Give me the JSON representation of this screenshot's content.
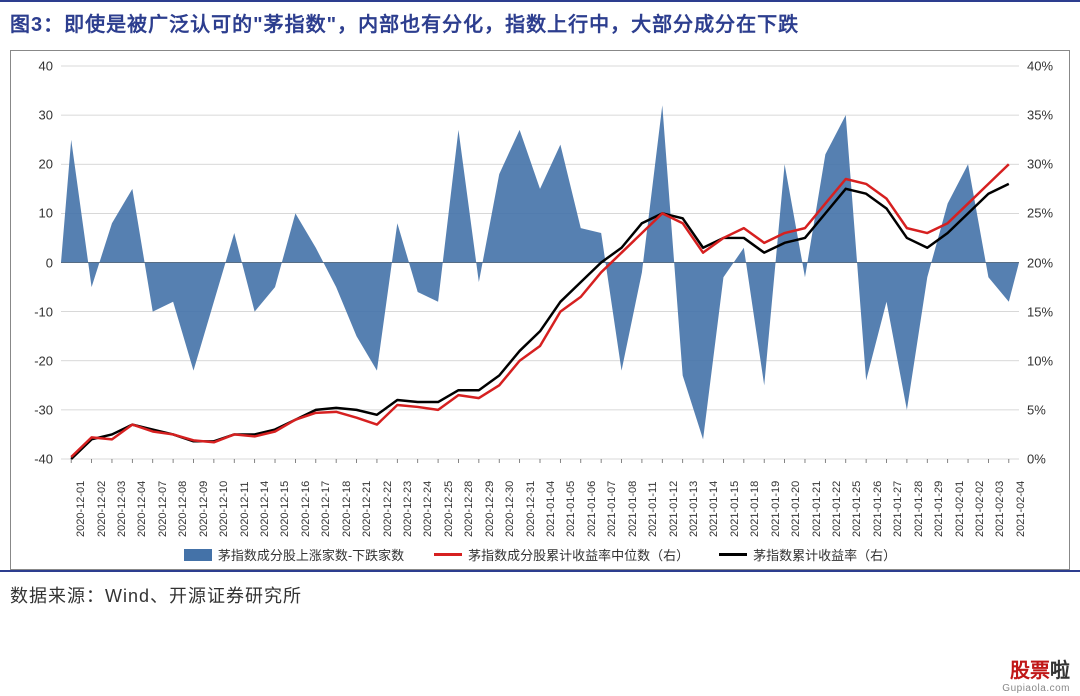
{
  "title": "图3：即使是被广泛认可的\"茅指数\"，内部也有分化，指数上行中，大部分成分在下跌",
  "source": "数据来源：Wind、开源证券研究所",
  "watermark": {
    "main1": "股票",
    "main2": "啦",
    "sub": "Gupiaola.com"
  },
  "chart": {
    "type": "combo-bar-line",
    "background_color": "#ffffff",
    "grid_color": "#cccccc",
    "bar_color": "#4472a8",
    "line1_color": "#d62020",
    "line2_color": "#000000",
    "line_width": 2.5,
    "axis_fontsize": 13,
    "xlabel_fontsize": 11,
    "y_left": {
      "min": -40,
      "max": 40,
      "step": 10,
      "ticks": [
        -40,
        -30,
        -20,
        -10,
        0,
        10,
        20,
        30,
        40
      ]
    },
    "y_right": {
      "min": 0,
      "max": 40,
      "step": 5,
      "ticks_labels": [
        "0%",
        "5%",
        "10%",
        "15%",
        "20%",
        "25%",
        "30%",
        "35%",
        "40%"
      ],
      "ticks_values": [
        0,
        5,
        10,
        15,
        20,
        25,
        30,
        35,
        40
      ]
    },
    "legend": {
      "bar": "茅指数成分股上涨家数-下跌家数",
      "line1": "茅指数成分股累计收益率中位数（右）",
      "line2": "茅指数累计收益率（右）"
    },
    "categories": [
      "2020-12-01",
      "2020-12-02",
      "2020-12-03",
      "2020-12-04",
      "2020-12-07",
      "2020-12-08",
      "2020-12-09",
      "2020-12-10",
      "2020-12-11",
      "2020-12-14",
      "2020-12-15",
      "2020-12-16",
      "2020-12-17",
      "2020-12-18",
      "2020-12-21",
      "2020-12-22",
      "2020-12-23",
      "2020-12-24",
      "2020-12-25",
      "2020-12-28",
      "2020-12-29",
      "2020-12-30",
      "2020-12-31",
      "2021-01-04",
      "2021-01-05",
      "2021-01-06",
      "2021-01-07",
      "2021-01-08",
      "2021-01-11",
      "2021-01-12",
      "2021-01-13",
      "2021-01-14",
      "2021-01-15",
      "2021-01-18",
      "2021-01-19",
      "2021-01-20",
      "2021-01-21",
      "2021-01-22",
      "2021-01-25",
      "2021-01-26",
      "2021-01-27",
      "2021-01-28",
      "2021-01-29",
      "2021-02-01",
      "2021-02-02",
      "2021-02-03",
      "2021-02-04"
    ],
    "bar_values": [
      25,
      -5,
      8,
      15,
      -10,
      -8,
      -22,
      -8,
      6,
      -10,
      -5,
      10,
      3,
      -5,
      -15,
      -22,
      8,
      -6,
      -8,
      27,
      -4,
      18,
      27,
      15,
      24,
      7,
      6,
      -22,
      -2,
      32,
      -23,
      -36,
      -3,
      3,
      -25,
      20,
      -3,
      22,
      30,
      -24,
      -8,
      -30,
      -3,
      12,
      20,
      -3,
      -8
    ],
    "line1_values": [
      0.2,
      2.2,
      2.0,
      3.5,
      2.8,
      2.5,
      1.9,
      1.7,
      2.5,
      2.3,
      2.8,
      4.0,
      4.7,
      4.8,
      4.2,
      3.5,
      5.5,
      5.3,
      5.0,
      6.5,
      6.2,
      7.5,
      10.0,
      11.5,
      15.0,
      16.5,
      19.0,
      21.0,
      23.0,
      25.0,
      24.0,
      21.0,
      22.5,
      23.5,
      22.0,
      23.0,
      23.5,
      26.0,
      28.5,
      28.0,
      26.5,
      23.5,
      23.0,
      24.0,
      26.0,
      28.0,
      30.0
    ],
    "line2_values": [
      0.0,
      2.0,
      2.5,
      3.5,
      3.0,
      2.5,
      1.8,
      1.8,
      2.5,
      2.5,
      3.0,
      4.0,
      5.0,
      5.2,
      5.0,
      4.5,
      6.0,
      5.8,
      5.8,
      7.0,
      7.0,
      8.5,
      11.0,
      13.0,
      16.0,
      18.0,
      20.0,
      21.5,
      24.0,
      25.0,
      24.5,
      21.5,
      22.5,
      22.5,
      21.0,
      22.0,
      22.5,
      25.0,
      27.5,
      27.0,
      25.5,
      22.5,
      21.5,
      23.0,
      25.0,
      27.0,
      28.0
    ]
  }
}
